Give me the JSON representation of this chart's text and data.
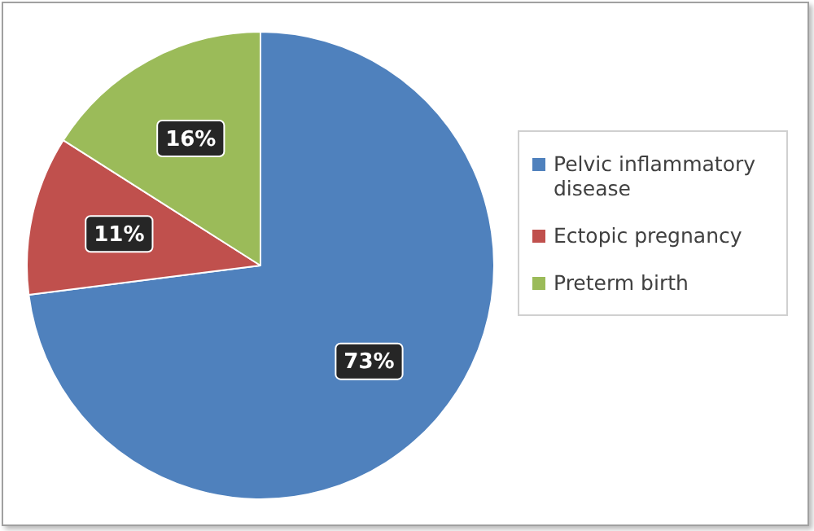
{
  "chart_data": {
    "type": "pie",
    "categories": [
      "Pelvic inflammatory disease",
      "Ectopic pregnancy",
      "Preterm birth"
    ],
    "values": [
      73,
      11,
      16
    ],
    "value_labels": [
      "73%",
      "11%",
      "16%"
    ],
    "colors": [
      "#4f81bd",
      "#c0504d",
      "#9bbb59"
    ],
    "legend": "right"
  }
}
